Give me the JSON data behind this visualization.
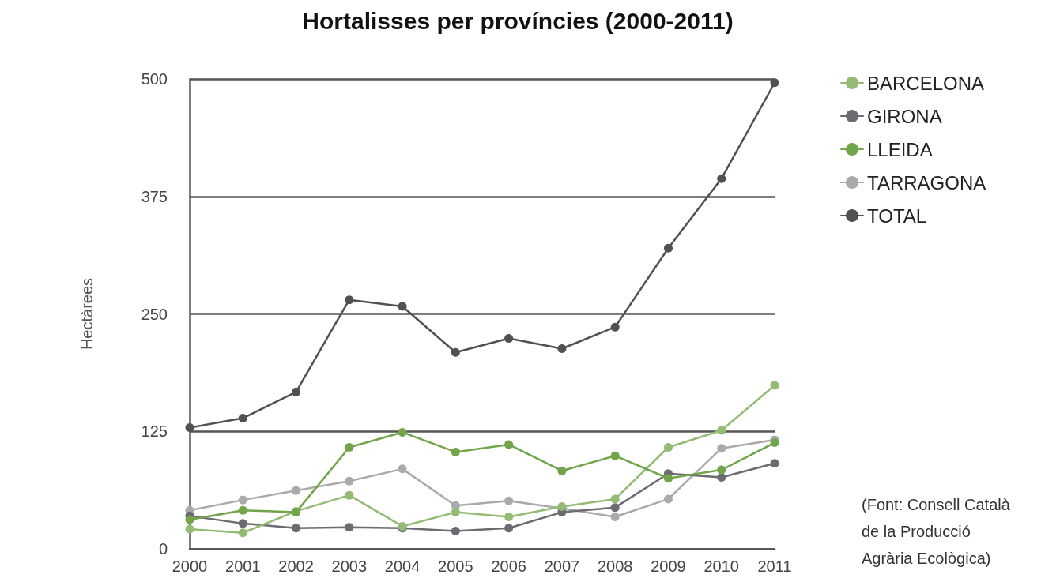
{
  "chart_data": {
    "type": "line",
    "title": "Hortalisses per províncies (2000-2011)",
    "ylabel": "Hectàrees",
    "categories": [
      "2000",
      "2001",
      "2002",
      "2003",
      "2004",
      "2005",
      "2006",
      "2007",
      "2008",
      "2009",
      "2010",
      "2011"
    ],
    "series": [
      {
        "name": "BARCELONA",
        "color": "#93bb74",
        "values": [
          21,
          17,
          40,
          57,
          24,
          39,
          34,
          45,
          53,
          108,
          126,
          174
        ]
      },
      {
        "name": "GIRONA",
        "color": "#6b6b71",
        "values": [
          35,
          27,
          22,
          23,
          22,
          19,
          22,
          39,
          44,
          80,
          76,
          91
        ]
      },
      {
        "name": "LLEIDA",
        "color": "#72a44a",
        "values": [
          31,
          41,
          39,
          108,
          124,
          103,
          111,
          83,
          99,
          75,
          84,
          113
        ]
      },
      {
        "name": "TARRAGONA",
        "color": "#a9a9ae",
        "values": [
          41,
          52,
          62,
          72,
          85,
          46,
          51,
          43,
          34,
          53,
          107,
          116
        ]
      },
      {
        "name": "TOTAL",
        "color": "#505153",
        "values": [
          129,
          139,
          167,
          265,
          258,
          209,
          224,
          213,
          236,
          320,
          394,
          496
        ]
      }
    ],
    "ylim": [
      0,
      500
    ],
    "yticks": [
      0,
      125,
      250,
      375,
      500
    ],
    "grid": "y",
    "legend": "top right",
    "marker": "circle",
    "line_style": "solid",
    "annotations": [
      "(Font: Consell Català de la Producció Agrària Ecològica)"
    ]
  }
}
